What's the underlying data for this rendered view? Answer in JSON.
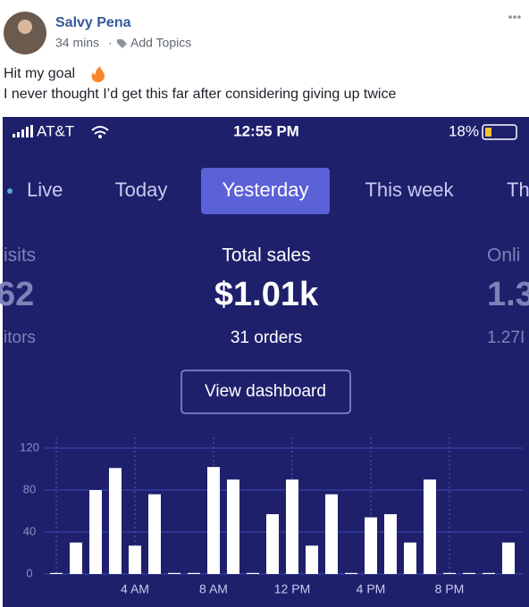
{
  "post": {
    "author": "Salvy Pena",
    "time": "34 mins",
    "topics": "Add Topics",
    "lines": [
      "Hit my goal",
      "I never thought I’d get this far after considering giving up twice"
    ]
  },
  "phone": {
    "carrier": "AT&T",
    "clock": "12:55 PM",
    "battery": "18%",
    "tabs": [
      "Live",
      "Today",
      "Yesterday",
      "This week",
      "Th"
    ],
    "stats": [
      {
        "label": "isits",
        "value": "62",
        "sub": "itors"
      },
      {
        "label": "Total sales",
        "value": "$1.01k",
        "sub": "31 orders"
      },
      {
        "label": "Onli",
        "value": "1.3",
        "sub": "1.27I"
      }
    ],
    "button": "View dashboard"
  },
  "chart_data": {
    "type": "bar",
    "color": "#ffffff",
    "categories": [
      null,
      null,
      null,
      null,
      "4 AM",
      null,
      null,
      null,
      "8 AM",
      null,
      null,
      null,
      "12 PM",
      null,
      null,
      null,
      "4 PM",
      null,
      null,
      null,
      "8 PM",
      null,
      null,
      null
    ],
    "values": [
      1,
      30,
      80,
      101,
      27,
      76,
      1,
      1,
      102,
      90,
      1,
      57,
      90,
      27,
      76,
      1,
      54,
      57,
      30,
      90,
      1,
      1,
      1,
      30
    ],
    "ylim": [
      0,
      120
    ],
    "yticks": [
      0,
      40,
      80,
      120
    ],
    "grid": true
  }
}
